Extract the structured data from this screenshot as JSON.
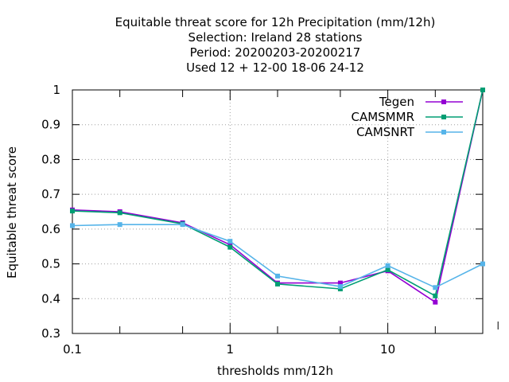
{
  "chart_data": {
    "type": "line",
    "title_lines": [
      "Equitable threat score  for 12h Precipitation (mm/12h)",
      "Selection: Ireland      28 stations",
      "Period: 20200203-20200217",
      "Used  12 + 12-00 18-06 24-12"
    ],
    "xlabel": "thresholds mm/12h",
    "ylabel": "Equitable threat score",
    "x_scale": "log",
    "xlim": [
      0.1,
      40
    ],
    "ylim": [
      0.3,
      1.0
    ],
    "x_ticks": [
      0.1,
      1,
      10
    ],
    "x_tick_labels": [
      "0.1",
      "1",
      "10"
    ],
    "x_minor_ticks": [
      0.2,
      0.5,
      2,
      5,
      20,
      50
    ],
    "y_ticks": [
      0.3,
      0.4,
      0.5,
      0.6,
      0.7,
      0.8,
      0.9,
      1.0
    ],
    "y_tick_labels": [
      "0.3",
      "0.4",
      "0.5",
      "0.6",
      "0.7",
      "0.8",
      "0.9",
      "1"
    ],
    "grid": true,
    "legend_position": "top-right",
    "x": [
      0.1,
      0.2,
      0.5,
      1,
      2,
      5,
      10,
      20,
      40
    ],
    "series": [
      {
        "name": "Tegen",
        "color": "#9400d3",
        "values": [
          0.655,
          0.65,
          0.618,
          0.555,
          0.445,
          0.445,
          0.48,
          0.39,
          1.0
        ]
      },
      {
        "name": "CAMSMMR",
        "color": "#009e73",
        "values": [
          0.652,
          0.647,
          0.615,
          0.548,
          0.442,
          0.428,
          0.483,
          0.408,
          1.0
        ]
      },
      {
        "name": "CAMSNRT",
        "color": "#56b4e9",
        "values": [
          0.61,
          0.613,
          0.613,
          0.565,
          0.465,
          0.435,
          0.495,
          0.432,
          0.5
        ]
      }
    ]
  }
}
